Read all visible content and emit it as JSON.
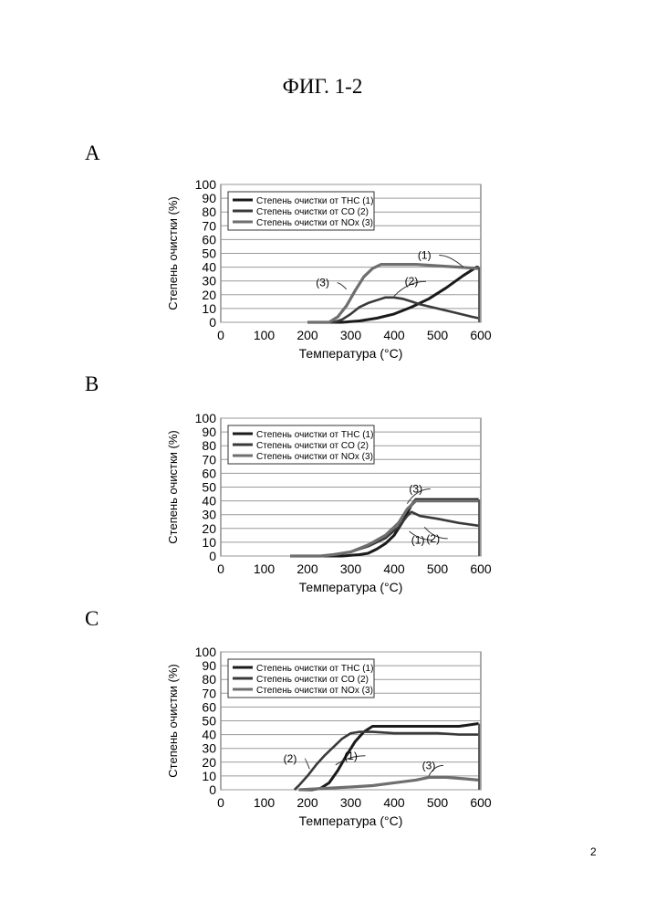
{
  "figure_title": "ФИГ. 1-2",
  "page_number": "2",
  "chart_data": [
    {
      "panel": "A",
      "type": "line",
      "xlabel": "Температура (°C)",
      "ylabel": "Степень очистки   (%)",
      "xlim": [
        0,
        600
      ],
      "ylim": [
        0,
        100
      ],
      "xticks": [
        0,
        100,
        200,
        300,
        400,
        500,
        600
      ],
      "yticks": [
        0,
        10,
        20,
        30,
        40,
        50,
        60,
        70,
        80,
        90,
        100
      ],
      "grid": "horizontal",
      "legend_position": "top-left",
      "series": [
        {
          "name": "Степень очистки от THC (1)",
          "label": "(1)",
          "color": "#1a1a1a",
          "x": [
            200,
            280,
            320,
            360,
            400,
            440,
            480,
            520,
            560,
            590,
            595
          ],
          "y": [
            0,
            0,
            1,
            3,
            6,
            11,
            17,
            25,
            34,
            40,
            40
          ]
        },
        {
          "name": "Степень очистки от CO (2)",
          "label": "(2)",
          "color": "#3a3a3a",
          "x": [
            200,
            260,
            280,
            300,
            320,
            340,
            360,
            380,
            400,
            420,
            440,
            460,
            500,
            540,
            580,
            595
          ],
          "y": [
            0,
            0,
            2,
            6,
            11,
            14,
            16,
            18,
            18,
            17,
            15,
            13,
            10,
            7,
            4,
            3
          ]
        },
        {
          "name": "Степень очистки от NOx (3)",
          "label": "(3)",
          "color": "#6e6e6e",
          "x": [
            200,
            250,
            270,
            290,
            310,
            330,
            350,
            370,
            400,
            450,
            500,
            550,
            595
          ],
          "y": [
            0,
            0,
            4,
            12,
            23,
            33,
            39,
            42,
            42,
            42,
            41,
            40,
            39
          ]
        }
      ]
    },
    {
      "panel": "B",
      "type": "line",
      "xlabel": "Температура (°C)",
      "ylabel": "Степень очистки   (%)",
      "xlim": [
        0,
        600
      ],
      "ylim": [
        0,
        100
      ],
      "xticks": [
        0,
        100,
        200,
        300,
        400,
        500,
        600
      ],
      "yticks": [
        0,
        10,
        20,
        30,
        40,
        50,
        60,
        70,
        80,
        90,
        100
      ],
      "grid": "horizontal",
      "legend_position": "top-left",
      "series": [
        {
          "name": "Степень очистки от THC (1)",
          "label": "(1)",
          "color": "#1a1a1a",
          "x": [
            160,
            280,
            320,
            340,
            360,
            380,
            400,
            420,
            440,
            450,
            500,
            550,
            595
          ],
          "y": [
            0,
            0,
            1,
            2,
            5,
            9,
            15,
            25,
            37,
            41,
            41,
            41,
            41
          ]
        },
        {
          "name": "Степень очистки от CO (2)",
          "label": "(2)",
          "color": "#3a3a3a",
          "x": [
            160,
            230,
            260,
            300,
            340,
            380,
            410,
            430,
            440,
            460,
            500,
            550,
            595
          ],
          "y": [
            0,
            0,
            1,
            3,
            7,
            13,
            21,
            29,
            32,
            29,
            27,
            24,
            22
          ]
        },
        {
          "name": "Степень очистки от NOx (3)",
          "label": "(3)",
          "color": "#6e6e6e",
          "x": [
            160,
            230,
            260,
            300,
            340,
            380,
            410,
            430,
            450,
            500,
            550,
            595
          ],
          "y": [
            0,
            0,
            1,
            3,
            8,
            15,
            24,
            34,
            40,
            40,
            40,
            40
          ]
        }
      ]
    },
    {
      "panel": "C",
      "type": "line",
      "xlabel": "Температура (°C)",
      "ylabel": "Степень очистки   (%)",
      "xlim": [
        0,
        600
      ],
      "ylim": [
        0,
        100
      ],
      "xticks": [
        0,
        100,
        200,
        300,
        400,
        500,
        600
      ],
      "yticks": [
        0,
        10,
        20,
        30,
        40,
        50,
        60,
        70,
        80,
        90,
        100
      ],
      "grid": "horizontal",
      "legend_position": "top-left",
      "series": [
        {
          "name": "Степень очистки от THC (1)",
          "label": "(1)",
          "color": "#1a1a1a",
          "x": [
            180,
            210,
            230,
            250,
            270,
            290,
            310,
            330,
            350,
            400,
            450,
            500,
            550,
            595
          ],
          "y": [
            0,
            0,
            1,
            5,
            14,
            25,
            35,
            42,
            46,
            46,
            46,
            46,
            46,
            48
          ]
        },
        {
          "name": "Степень очистки от CO (2)",
          "label": "(2)",
          "color": "#3a3a3a",
          "x": [
            170,
            180,
            200,
            220,
            240,
            260,
            280,
            300,
            320,
            350,
            400,
            450,
            500,
            550,
            595
          ],
          "y": [
            0,
            3,
            10,
            18,
            25,
            31,
            37,
            41,
            42,
            42,
            41,
            41,
            41,
            40,
            40
          ]
        },
        {
          "name": "Степень очистки от NOx (3)",
          "label": "(3)",
          "color": "#6e6e6e",
          "x": [
            180,
            240,
            300,
            350,
            400,
            450,
            480,
            520,
            560,
            595
          ],
          "y": [
            0,
            1,
            2,
            3,
            5,
            7,
            9,
            9,
            8,
            7
          ]
        }
      ]
    }
  ]
}
